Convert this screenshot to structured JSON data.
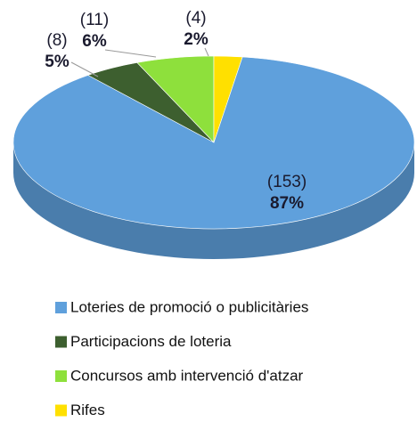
{
  "chart_data": {
    "type": "pie",
    "categories": [
      "Loteries de promoció o publicitàries",
      "Participacions de loteria",
      "Concursos amb intervenció d'atzar",
      "Rifes"
    ],
    "counts": [
      153,
      8,
      11,
      4
    ],
    "count_labels": [
      "(153)",
      "(8)",
      "(11)",
      "(4)"
    ],
    "values": [
      87,
      5,
      6,
      2
    ],
    "value_labels": [
      "87%",
      "5%",
      "6%",
      "2%"
    ],
    "colors": [
      "#5fa0dc",
      "#3d5f2f",
      "#8ee03c",
      "#ffe000"
    ]
  }
}
